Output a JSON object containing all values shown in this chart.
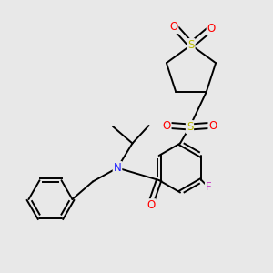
{
  "background_color": "#e8e8e8",
  "fig_size": [
    3.0,
    3.0
  ],
  "dpi": 100,
  "atom_colors": {
    "C": "#000000",
    "N": "#2020ff",
    "O": "#ff0000",
    "F": "#cc44cc",
    "S_ring": "#bbbb00",
    "S_sulfonyl": "#bbbb00"
  },
  "bond_color": "#000000",
  "bond_width": 1.4,
  "font_size_atom": 8.5
}
